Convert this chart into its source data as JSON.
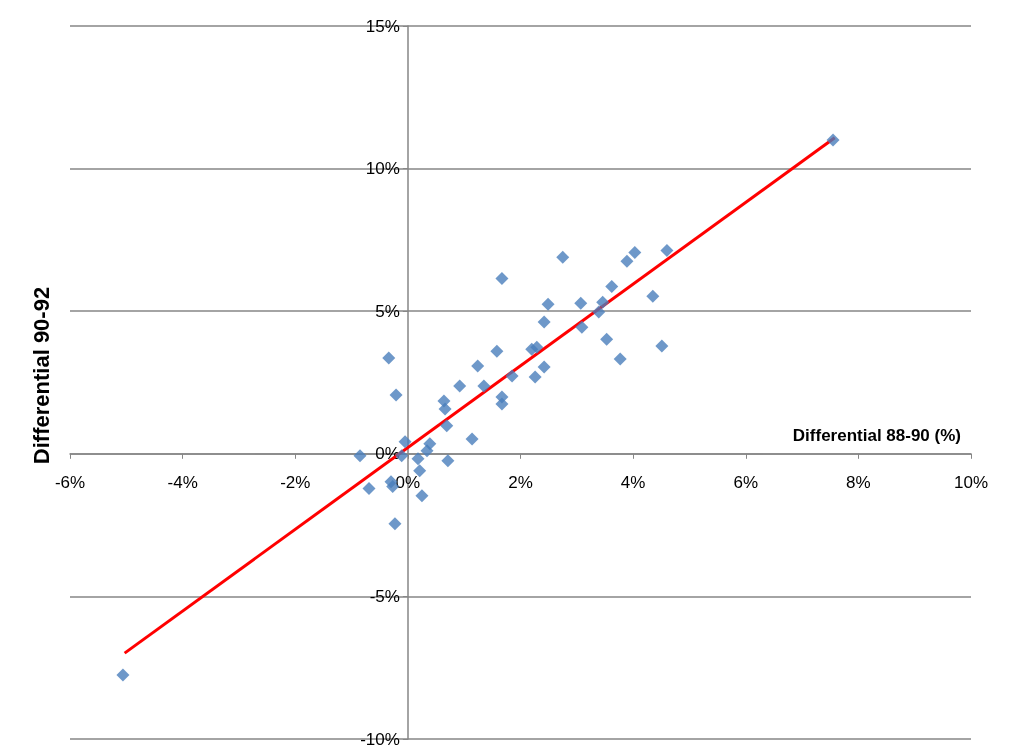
{
  "chart_data": {
    "type": "scatter",
    "xlabel": "Differential 88-90 (%)",
    "ylabel": "Differential 90-92",
    "xlim": [
      -6,
      10
    ],
    "ylim": [
      -10,
      15
    ],
    "xticks": [
      {
        "value": -6,
        "label": "-6%"
      },
      {
        "value": -4,
        "label": "-4%"
      },
      {
        "value": -2,
        "label": "-2%"
      },
      {
        "value": 0,
        "label": "0%"
      },
      {
        "value": 2,
        "label": "2%"
      },
      {
        "value": 4,
        "label": "4%"
      },
      {
        "value": 6,
        "label": "6%"
      },
      {
        "value": 8,
        "label": "8%"
      },
      {
        "value": 10,
        "label": "10%"
      }
    ],
    "yticks": [
      {
        "value": -10,
        "label": "-10%"
      },
      {
        "value": -5,
        "label": "-5%"
      },
      {
        "value": 0,
        "label": "0%"
      },
      {
        "value": 5,
        "label": "5%"
      },
      {
        "value": 10,
        "label": "10%"
      },
      {
        "value": 15,
        "label": "15%"
      }
    ],
    "grid": "y",
    "series": [
      {
        "marker": "diamond",
        "color": "#4a7ebb",
        "x": [
          7.55,
          -5.06,
          4.03,
          3.89,
          4.6,
          2.75,
          3.62,
          3.07,
          3.46,
          3.39,
          4.35,
          3.09,
          3.53,
          3.77,
          4.51,
          1.67,
          2.49,
          2.42,
          1.58,
          1.24,
          2.2,
          2.29,
          0.92,
          1.35,
          1.85,
          2.42,
          2.26,
          1.67,
          1.67,
          -0.34,
          -0.21,
          0.64,
          0.66,
          0.69,
          1.14,
          -0.05,
          -0.11,
          0.39,
          0.34,
          0.18,
          0.21,
          0.71,
          -0.85,
          -0.69,
          -0.3,
          -0.27,
          0.25,
          -0.23
        ],
        "values": [
          11.0,
          -7.76,
          7.06,
          6.75,
          7.13,
          6.89,
          5.87,
          5.28,
          5.31,
          4.97,
          5.52,
          4.44,
          4.02,
          3.32,
          3.78,
          6.15,
          5.24,
          4.62,
          3.6,
          3.08,
          3.67,
          3.74,
          2.38,
          2.38,
          2.73,
          3.04,
          2.69,
          1.99,
          1.75,
          3.36,
          2.06,
          1.85,
          1.57,
          0.98,
          0.52,
          0.42,
          -0.07,
          0.35,
          0.11,
          -0.17,
          -0.59,
          -0.24,
          -0.07,
          -1.22,
          -0.98,
          -1.15,
          -1.47,
          -2.45
        ]
      },
      {
        "type": "line",
        "color": "#ff0000",
        "x": [
          -5.03,
          7.58
        ],
        "values": [
          -6.99,
          11.08
        ]
      }
    ]
  }
}
